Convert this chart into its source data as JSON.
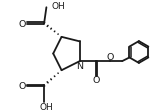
{
  "bg_color": "#ffffff",
  "line_color": "#1a1a1a",
  "line_width": 1.3,
  "figsize": [
    1.58,
    1.13
  ],
  "dpi": 100,
  "xlim": [
    0,
    10
  ],
  "ylim": [
    0,
    7.2
  ]
}
